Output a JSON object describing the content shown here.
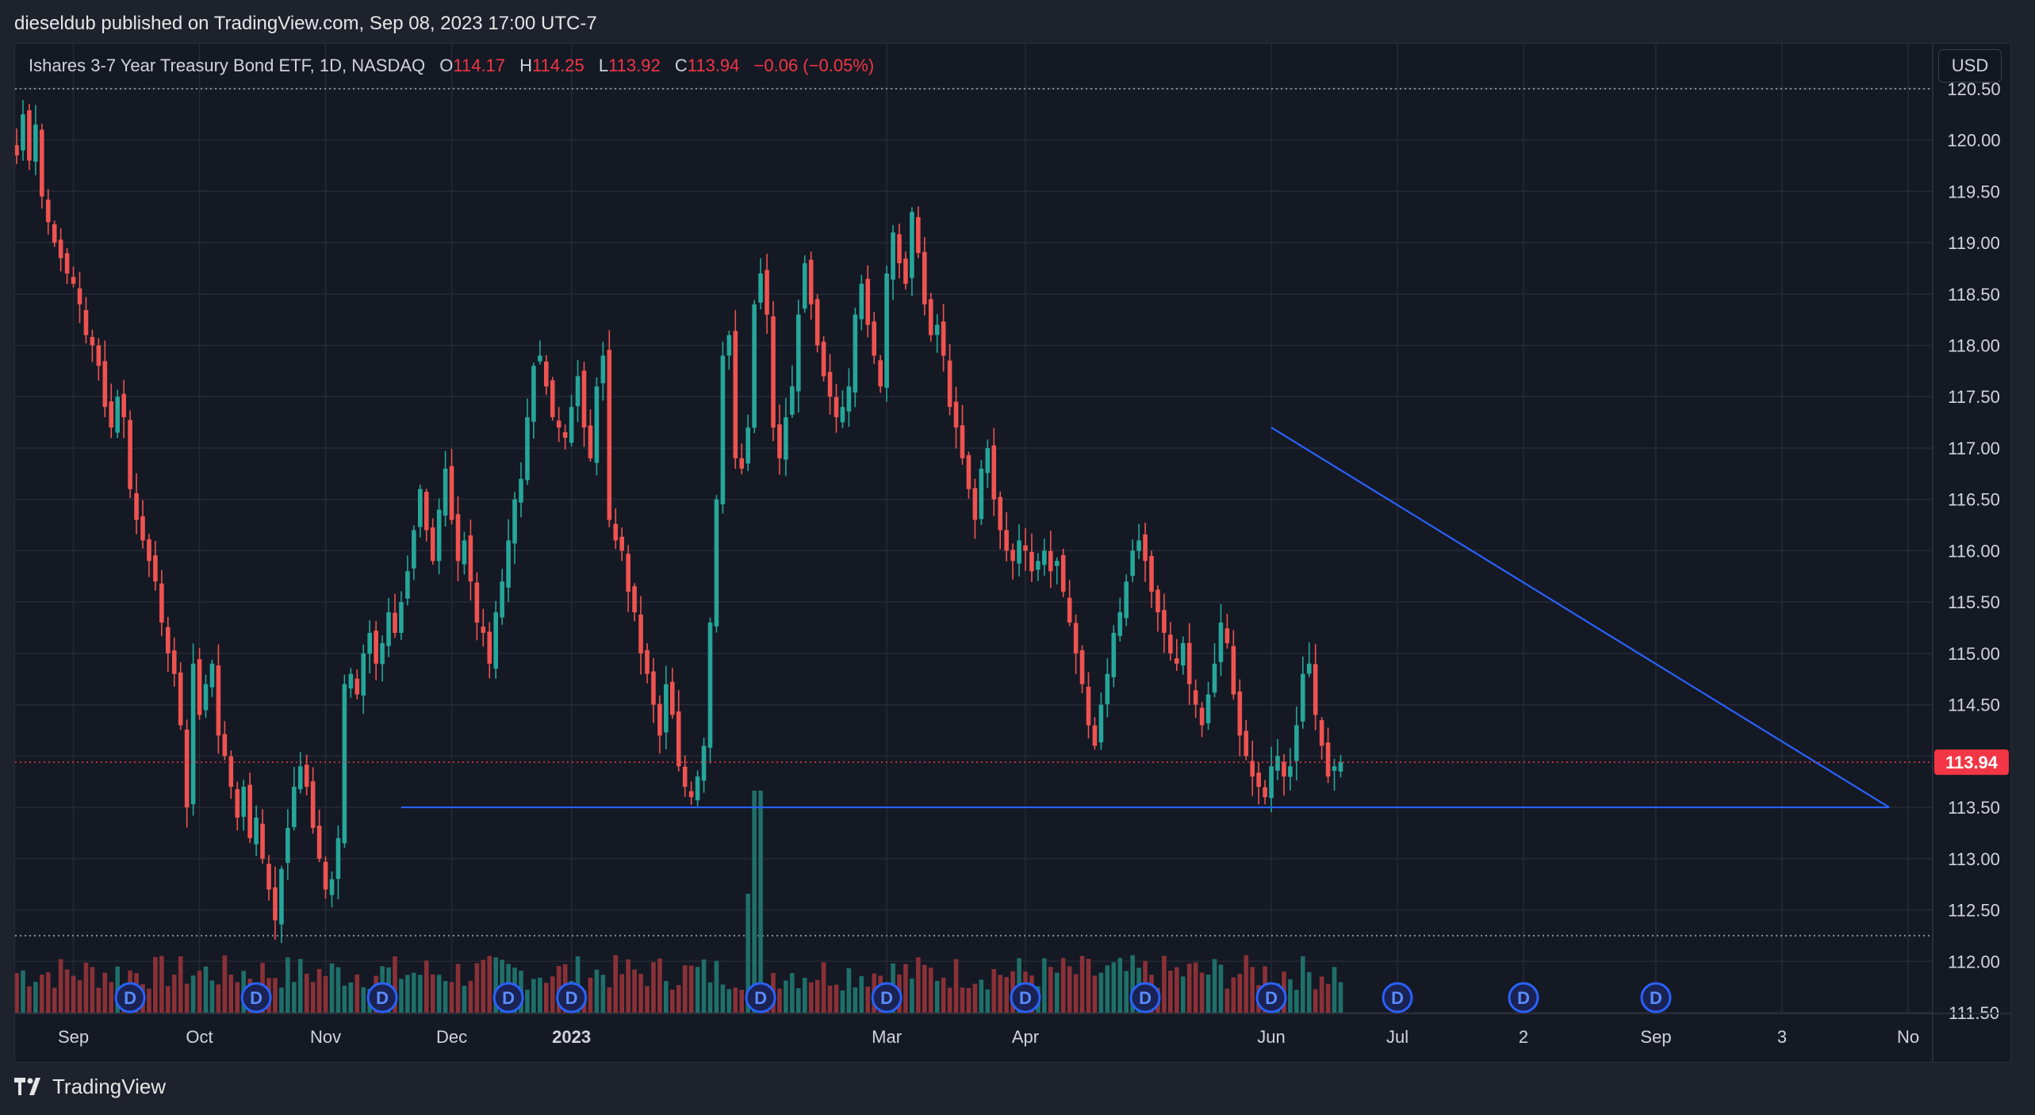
{
  "header": {
    "published": "dieseldub published on TradingView.com, Sep 08, 2023 17:00 UTC-7"
  },
  "legend": {
    "symbol": "Ishares 3-7 Year Treasury Bond ETF, 1D, NASDAQ",
    "o_label": "O",
    "o_value": "114.17",
    "h_label": "H",
    "h_value": "114.25",
    "l_label": "L",
    "l_value": "113.92",
    "c_label": "C",
    "c_value": "113.94",
    "change": "−0.06 (−0.05%)"
  },
  "currency": "USD",
  "footer": {
    "brand": "TradingView"
  },
  "colors": {
    "up": "#26a69a",
    "down": "#ef5350",
    "bg": "#151924",
    "grid": "#252a36",
    "trendline": "#2962ff",
    "price_tag": "#f23645",
    "volume_up": "#1f6f6a",
    "volume_down": "#8a3137"
  },
  "chart_data": {
    "type": "candlestick",
    "title": "Ishares 3-7 Year Treasury Bond ETF, 1D, NASDAQ",
    "ylim": [
      111.5,
      120.8
    ],
    "y_ticks": [
      "120.50",
      "120.00",
      "119.50",
      "119.00",
      "118.50",
      "118.00",
      "117.50",
      "117.00",
      "116.50",
      "116.00",
      "115.50",
      "115.00",
      "114.50",
      "114.00",
      "113.50",
      "113.00",
      "112.50",
      "112.00",
      "111.50"
    ],
    "y_tick_values": [
      120.5,
      120.0,
      119.5,
      119.0,
      118.5,
      118.0,
      117.5,
      117.0,
      116.5,
      116.0,
      115.5,
      115.0,
      114.5,
      114.0,
      113.5,
      113.0,
      112.5,
      112.0,
      111.5
    ],
    "x_labels": [
      {
        "label": "Sep",
        "day": 9
      },
      {
        "label": "Oct",
        "day": 29
      },
      {
        "label": "Nov",
        "day": 49
      },
      {
        "label": "Dec",
        "day": 69
      },
      {
        "label": "2023",
        "day": 88
      },
      {
        "label": "Mar",
        "day": 138
      },
      {
        "label": "Apr",
        "day": 160
      },
      {
        "label": "Jun",
        "day": 199
      },
      {
        "label": "Jul",
        "day": 219
      },
      {
        "label": "2",
        "day": 239
      },
      {
        "label": "Sep",
        "day": 260
      },
      {
        "label": "3",
        "day": 280
      },
      {
        "label": "No",
        "day": 300
      }
    ],
    "bold_labels": [
      "2023"
    ],
    "last_price": "113.94",
    "last_price_value": 113.94,
    "resistance_high": 120.5,
    "support_low": 112.25,
    "trendlines": [
      {
        "name": "horizontal-support",
        "x1": 61,
        "y1": 113.5,
        "x2": 297,
        "y2": 113.5
      },
      {
        "name": "descending-resistance",
        "x1": 199,
        "y1": 117.2,
        "x2": 297,
        "y2": 113.5
      }
    ],
    "dividend_markers_days": [
      18,
      38,
      58,
      78,
      88,
      118,
      138,
      160,
      179,
      199,
      219,
      239,
      260
    ],
    "marker_label": "D",
    "closes": [
      119.85,
      120.25,
      119.8,
      120.15,
      119.45,
      119.2,
      119.0,
      118.85,
      118.7,
      118.6,
      118.4,
      118.1,
      118.0,
      117.8,
      117.4,
      117.2,
      117.5,
      117.3,
      116.6,
      116.3,
      116.1,
      115.9,
      115.7,
      115.3,
      115.0,
      114.8,
      114.3,
      113.5,
      114.9,
      114.4,
      114.7,
      114.9,
      114.2,
      114.0,
      113.7,
      113.4,
      113.7,
      113.2,
      113.4,
      113.0,
      112.7,
      112.4,
      112.9,
      113.3,
      113.7,
      113.9,
      113.7,
      113.3,
      113.0,
      112.7,
      112.8,
      113.2,
      114.7,
      114.8,
      114.6,
      115.0,
      115.2,
      114.9,
      115.1,
      115.4,
      115.2,
      115.5,
      115.8,
      116.2,
      116.6,
      116.2,
      115.9,
      116.4,
      116.8,
      116.3,
      115.9,
      116.1,
      115.7,
      115.3,
      115.2,
      114.9,
      115.4,
      115.7,
      116.1,
      116.5,
      116.7,
      117.3,
      117.8,
      117.9,
      117.6,
      117.3,
      117.2,
      117.1,
      117.4,
      117.7,
      117.2,
      116.9,
      117.6,
      117.9,
      116.3,
      116.1,
      116.0,
      115.6,
      115.4,
      115.0,
      114.8,
      114.5,
      114.2,
      114.7,
      114.4,
      113.9,
      113.7,
      113.6,
      113.8,
      114.1,
      115.3,
      116.5,
      117.9,
      118.1,
      116.9,
      116.8,
      117.2,
      118.4,
      118.7,
      118.3,
      117.2,
      116.9,
      117.3,
      117.6,
      118.3,
      118.8,
      118.4,
      118.0,
      117.7,
      117.5,
      117.3,
      117.4,
      117.6,
      118.3,
      118.6,
      118.2,
      117.9,
      117.6,
      118.7,
      119.1,
      118.8,
      118.6,
      119.3,
      118.9,
      118.4,
      118.1,
      118.2,
      117.9,
      117.4,
      117.2,
      116.9,
      116.6,
      116.3,
      116.8,
      117.0,
      116.5,
      116.2,
      116.0,
      115.9,
      116.1,
      116.0,
      115.8,
      115.9,
      116.0,
      115.8,
      115.9,
      115.6,
      115.3,
      115.0,
      114.7,
      114.3,
      114.1,
      114.5,
      114.8,
      115.2,
      115.4,
      115.7,
      116.0,
      116.1,
      115.9,
      115.6,
      115.4,
      115.2,
      115.0,
      114.9,
      115.1,
      114.7,
      114.5,
      114.3,
      114.6,
      114.9,
      115.3,
      115.1,
      114.6,
      114.2,
      114.0,
      113.8,
      113.7,
      113.6,
      113.9,
      114.0,
      113.8,
      113.9,
      114.3,
      114.8,
      114.9,
      114.4,
      114.1,
      113.8,
      113.9,
      113.94
    ],
    "volumes_note": "Volume bars shown along the bottom, colored by candle direction."
  }
}
